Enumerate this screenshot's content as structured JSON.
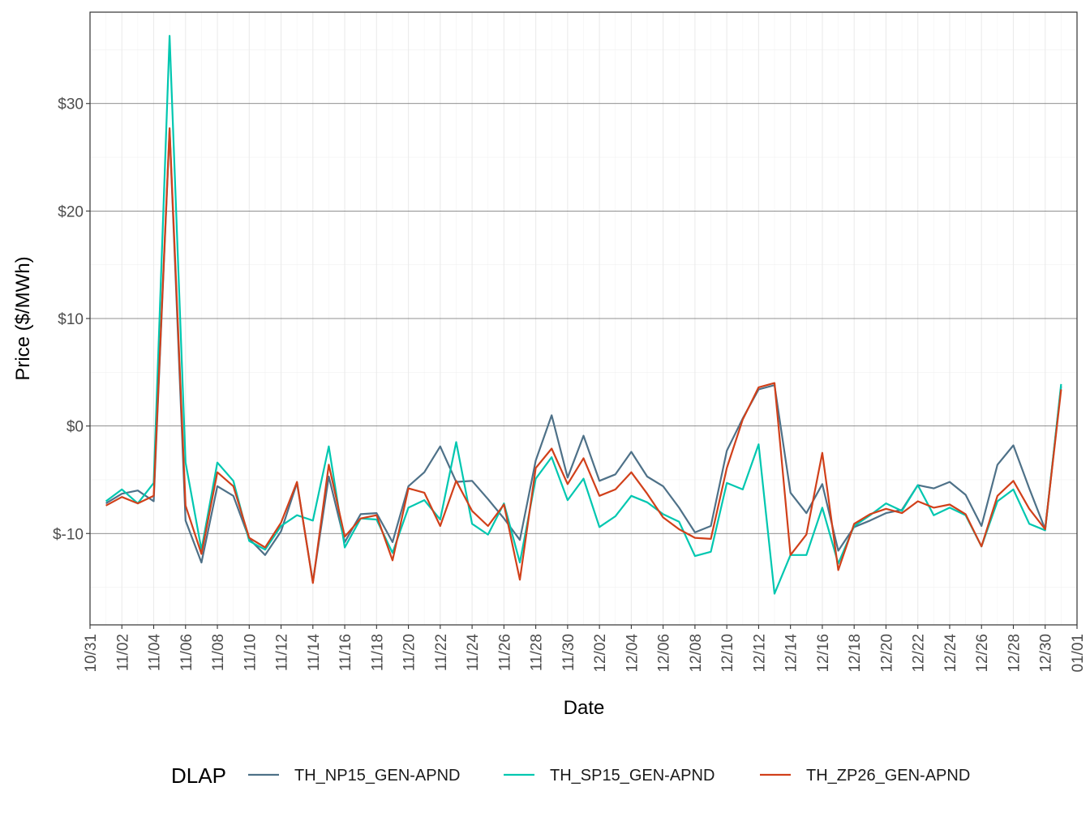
{
  "chart_data": {
    "type": "line",
    "title": "",
    "xlabel": "Date",
    "ylabel": "Price ($/MWh)",
    "ylim": [
      -18.5,
      38.5
    ],
    "y_ticks": [
      {
        "value": -10,
        "label": "$-10"
      },
      {
        "value": 0,
        "label": "$0"
      },
      {
        "value": 10,
        "label": "$10"
      },
      {
        "value": 20,
        "label": "$20"
      },
      {
        "value": 30,
        "label": "$30"
      }
    ],
    "x_ticks": [
      "10/31",
      "11/02",
      "11/04",
      "11/06",
      "11/08",
      "11/10",
      "11/12",
      "11/14",
      "11/16",
      "11/18",
      "11/20",
      "11/22",
      "11/24",
      "11/26",
      "11/28",
      "11/30",
      "12/02",
      "12/04",
      "12/06",
      "12/08",
      "12/10",
      "12/12",
      "12/14",
      "12/16",
      "12/18",
      "12/20",
      "12/22",
      "12/24",
      "12/26",
      "12/28",
      "12/30",
      "01/01"
    ],
    "x_start_day": 0,
    "x_end_day": 62,
    "x_data_start_day": 1,
    "legend": {
      "title": "DLAP",
      "position": "bottom"
    },
    "grid": true,
    "series": [
      {
        "name": "TH_NP15_GEN-APND",
        "color": "#4e7188",
        "values": [
          -7.2,
          -6.3,
          -6.0,
          -7.0,
          27.5,
          -8.8,
          -12.7,
          -5.6,
          -6.5,
          -10.5,
          -12.0,
          -9.8,
          -5.3,
          -14.5,
          -4.7,
          -10.8,
          -8.2,
          -8.1,
          -10.8,
          -5.6,
          -4.3,
          -1.9,
          -5.2,
          -5.1,
          -6.8,
          -8.6,
          -10.6,
          -3.2,
          1.0,
          -4.8,
          -0.9,
          -5.1,
          -4.5,
          -2.4,
          -4.7,
          -5.6,
          -7.6,
          -9.9,
          -9.3,
          -2.3,
          0.7,
          3.4,
          3.8,
          -6.2,
          -8.1,
          -5.4,
          -11.6,
          -9.4,
          -8.8,
          -8.1,
          -7.8,
          -5.5,
          -5.8,
          -5.2,
          -6.4,
          -9.3,
          -3.6,
          -1.8,
          -5.8,
          -9.6,
          3.7
        ]
      },
      {
        "name": "TH_SP15_GEN-APND",
        "color": "#00c7b0",
        "values": [
          -7.0,
          -5.9,
          -7.2,
          -5.3,
          36.3,
          -3.4,
          -11.5,
          -3.4,
          -5.1,
          -10.7,
          -11.5,
          -9.3,
          -8.3,
          -8.8,
          -1.9,
          -11.3,
          -8.6,
          -8.7,
          -11.8,
          -7.6,
          -6.9,
          -8.7,
          -1.5,
          -9.1,
          -10.1,
          -7.2,
          -12.7,
          -4.9,
          -2.9,
          -6.9,
          -4.9,
          -9.4,
          -8.4,
          -6.5,
          -7.1,
          -8.2,
          -8.9,
          -12.1,
          -11.7,
          -5.3,
          -5.9,
          -1.7,
          -15.6,
          -12.0,
          -12.0,
          -7.6,
          -12.8,
          -9.3,
          -8.3,
          -7.2,
          -7.9,
          -5.5,
          -8.3,
          -7.6,
          -8.3,
          -11.2,
          -7.0,
          -5.9,
          -9.1,
          -9.7,
          3.9
        ]
      },
      {
        "name": "TH_ZP26_GEN-APND",
        "color": "#d1401a",
        "values": [
          -7.4,
          -6.6,
          -7.2,
          -6.5,
          27.7,
          -7.4,
          -11.9,
          -4.3,
          -5.6,
          -10.4,
          -11.3,
          -9.0,
          -5.2,
          -14.6,
          -3.6,
          -10.3,
          -8.6,
          -8.3,
          -12.5,
          -5.8,
          -6.2,
          -9.3,
          -5.1,
          -7.9,
          -9.3,
          -7.3,
          -14.3,
          -3.9,
          -2.1,
          -5.4,
          -3.0,
          -6.5,
          -5.9,
          -4.3,
          -6.3,
          -8.5,
          -9.6,
          -10.4,
          -10.5,
          -3.9,
          0.6,
          3.6,
          4.0,
          -12.0,
          -10.1,
          -2.5,
          -13.4,
          -9.1,
          -8.2,
          -7.7,
          -8.1,
          -7.0,
          -7.6,
          -7.3,
          -8.2,
          -11.2,
          -6.5,
          -5.1,
          -7.7,
          -9.6,
          3.4
        ]
      }
    ]
  }
}
